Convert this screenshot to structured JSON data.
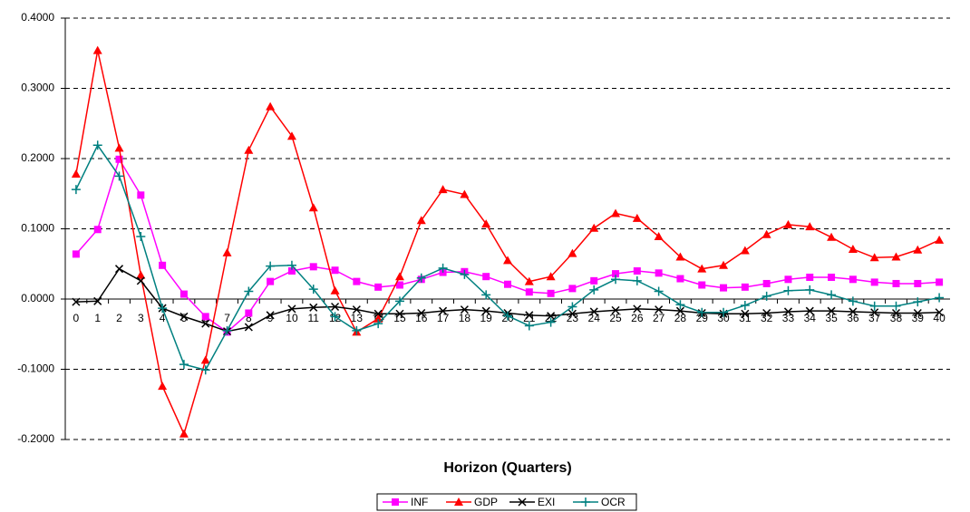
{
  "chart_data": {
    "type": "line",
    "xlabel": "Horizon (Quarters)",
    "categories": [
      "0",
      "1",
      "2",
      "3",
      "4",
      "5",
      "6",
      "7",
      "8",
      "9",
      "10",
      "11",
      "12",
      "13",
      "14",
      "15",
      "16",
      "17",
      "18",
      "19",
      "20",
      "21",
      "22",
      "23",
      "24",
      "25",
      "26",
      "27",
      "28",
      "29",
      "30",
      "31",
      "32",
      "33",
      "34",
      "35",
      "36",
      "37",
      "38",
      "39",
      "40"
    ],
    "series": [
      {
        "name": "INF",
        "color": "#ff00ff",
        "marker": "square",
        "values": [
          0.064,
          0.099,
          0.199,
          0.148,
          0.048,
          0.007,
          -0.025,
          -0.047,
          -0.02,
          0.025,
          0.04,
          0.046,
          0.041,
          0.025,
          0.017,
          0.02,
          0.028,
          0.038,
          0.039,
          0.032,
          0.021,
          0.01,
          0.008,
          0.015,
          0.026,
          0.036,
          0.04,
          0.037,
          0.029,
          0.02,
          0.016,
          0.017,
          0.022,
          0.028,
          0.031,
          0.031,
          0.028,
          0.024,
          0.022,
          0.022,
          0.024
        ]
      },
      {
        "name": "GDP",
        "color": "#ff0000",
        "marker": "triangle",
        "values": [
          0.178,
          0.354,
          0.215,
          0.034,
          -0.124,
          -0.192,
          -0.087,
          0.066,
          0.212,
          0.274,
          0.232,
          0.13,
          0.012,
          -0.047,
          -0.028,
          0.032,
          0.112,
          0.156,
          0.149,
          0.107,
          0.055,
          0.025,
          0.032,
          0.065,
          0.101,
          0.122,
          0.115,
          0.089,
          0.06,
          0.043,
          0.048,
          0.069,
          0.092,
          0.106,
          0.103,
          0.088,
          0.071,
          0.059,
          0.06,
          0.07,
          0.084
        ]
      },
      {
        "name": "EXI",
        "color": "#000000",
        "marker": "x",
        "values": [
          -0.004,
          -0.003,
          0.043,
          0.026,
          -0.013,
          -0.025,
          -0.035,
          -0.046,
          -0.04,
          -0.023,
          -0.014,
          -0.012,
          -0.011,
          -0.015,
          -0.021,
          -0.021,
          -0.02,
          -0.017,
          -0.015,
          -0.017,
          -0.02,
          -0.023,
          -0.024,
          -0.021,
          -0.018,
          -0.016,
          -0.014,
          -0.015,
          -0.017,
          -0.02,
          -0.021,
          -0.021,
          -0.02,
          -0.018,
          -0.017,
          -0.017,
          -0.018,
          -0.019,
          -0.02,
          -0.02,
          -0.019
        ]
      },
      {
        "name": "OCR",
        "color": "#008080",
        "marker": "plus",
        "values": [
          0.156,
          0.219,
          0.175,
          0.089,
          -0.013,
          -0.093,
          -0.101,
          -0.045,
          0.011,
          0.047,
          0.048,
          0.014,
          -0.025,
          -0.045,
          -0.035,
          -0.003,
          0.03,
          0.044,
          0.035,
          0.006,
          -0.024,
          -0.038,
          -0.033,
          -0.011,
          0.013,
          0.028,
          0.026,
          0.011,
          -0.008,
          -0.019,
          -0.019,
          -0.009,
          0.004,
          0.012,
          0.013,
          0.006,
          -0.003,
          -0.01,
          -0.01,
          -0.004,
          0.002
        ]
      }
    ],
    "ylim": [
      -0.2,
      0.4
    ],
    "yticks": [
      {
        "value": -0.2,
        "label": "-0.2000"
      },
      {
        "value": -0.1,
        "label": "-0.1000"
      },
      {
        "value": 0,
        "label": "0.0000"
      },
      {
        "value": 0.1,
        "label": "0.1000"
      },
      {
        "value": 0.2,
        "label": "0.2000"
      },
      {
        "value": 0.3,
        "label": "0.3000"
      },
      {
        "value": 0.4,
        "label": "0.4000"
      }
    ],
    "grid": true,
    "legend": "bottom"
  }
}
